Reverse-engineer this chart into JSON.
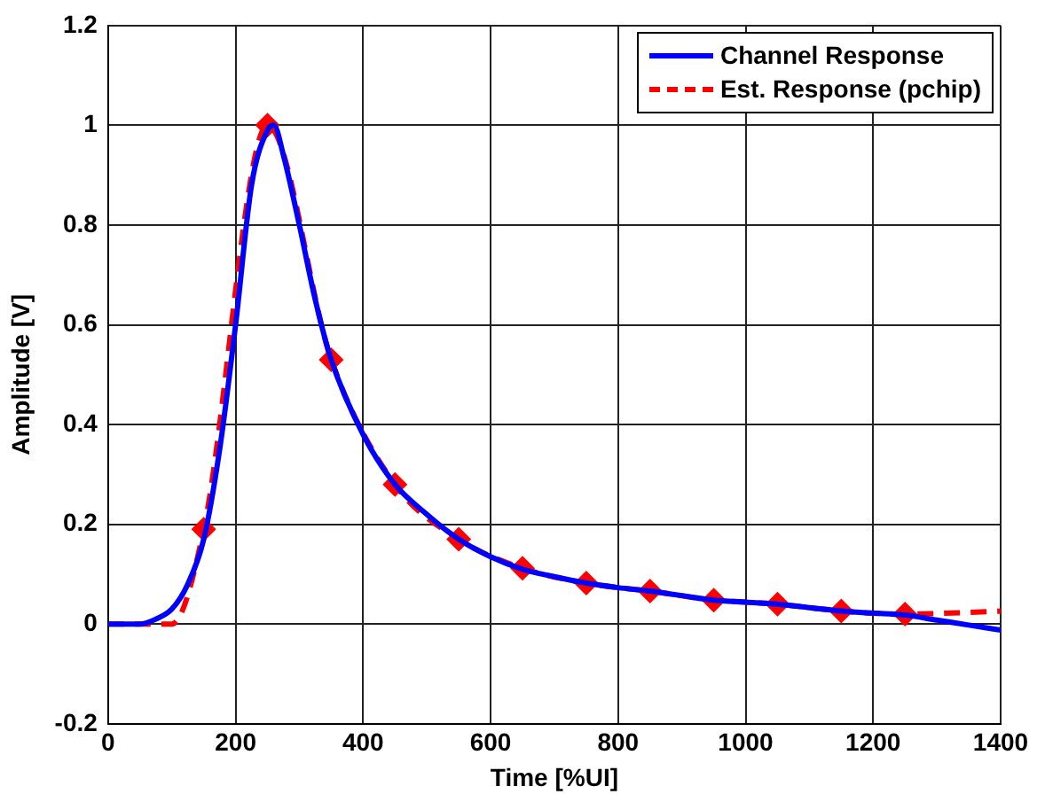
{
  "chart_data": {
    "type": "line",
    "xlabel": "Time [%UI]",
    "ylabel": "Amplitude [V]",
    "xlim": [
      0,
      1400
    ],
    "xticks": [
      0,
      200,
      400,
      600,
      800,
      1000,
      1200,
      1400
    ],
    "ylim": [
      -0.2,
      1.2
    ],
    "yticks": [
      -0.2,
      0,
      0.2,
      0.4,
      0.6,
      0.8,
      1,
      1.2
    ],
    "grid": true,
    "legend": "top right",
    "series": [
      {
        "name": "Channel Response",
        "color": "#0000ff",
        "line_style": "solid",
        "marker": "none",
        "x": [
          0,
          50,
          75,
          100,
          125,
          150,
          175,
          200,
          225,
          250,
          260,
          275,
          300,
          325,
          350,
          400,
          450,
          500,
          550,
          600,
          650,
          700,
          750,
          800,
          850,
          900,
          950,
          1000,
          1050,
          1100,
          1150,
          1200,
          1250,
          1300,
          1350,
          1400
        ],
        "values": [
          0,
          0,
          0.01,
          0.03,
          0.08,
          0.17,
          0.35,
          0.6,
          0.88,
          0.99,
          1.0,
          0.94,
          0.8,
          0.65,
          0.53,
          0.38,
          0.28,
          0.22,
          0.17,
          0.135,
          0.11,
          0.095,
          0.082,
          0.073,
          0.066,
          0.057,
          0.048,
          0.044,
          0.04,
          0.033,
          0.026,
          0.022,
          0.018,
          0.008,
          -0.002,
          -0.012
        ]
      },
      {
        "name": "Est. Response (pchip)",
        "color": "#ff0000",
        "line_style": "dashed",
        "marker": "none",
        "x": [
          0,
          50,
          100,
          150,
          250,
          350,
          450,
          550,
          650,
          750,
          850,
          950,
          1050,
          1150,
          1250,
          1400
        ],
        "values": [
          0,
          0,
          0,
          0.19,
          1.0,
          0.53,
          0.28,
          0.17,
          0.112,
          0.082,
          0.066,
          0.048,
          0.04,
          0.026,
          0.02,
          0.026
        ]
      },
      {
        "type": "scatter",
        "color": "#ff0000",
        "marker": "diamond",
        "x": [
          150,
          250,
          350,
          450,
          550,
          650,
          750,
          850,
          950,
          1050,
          1150,
          1250
        ],
        "values": [
          0.19,
          1.0,
          0.53,
          0.28,
          0.17,
          0.112,
          0.082,
          0.066,
          0.048,
          0.04,
          0.026,
          0.02
        ]
      }
    ]
  }
}
